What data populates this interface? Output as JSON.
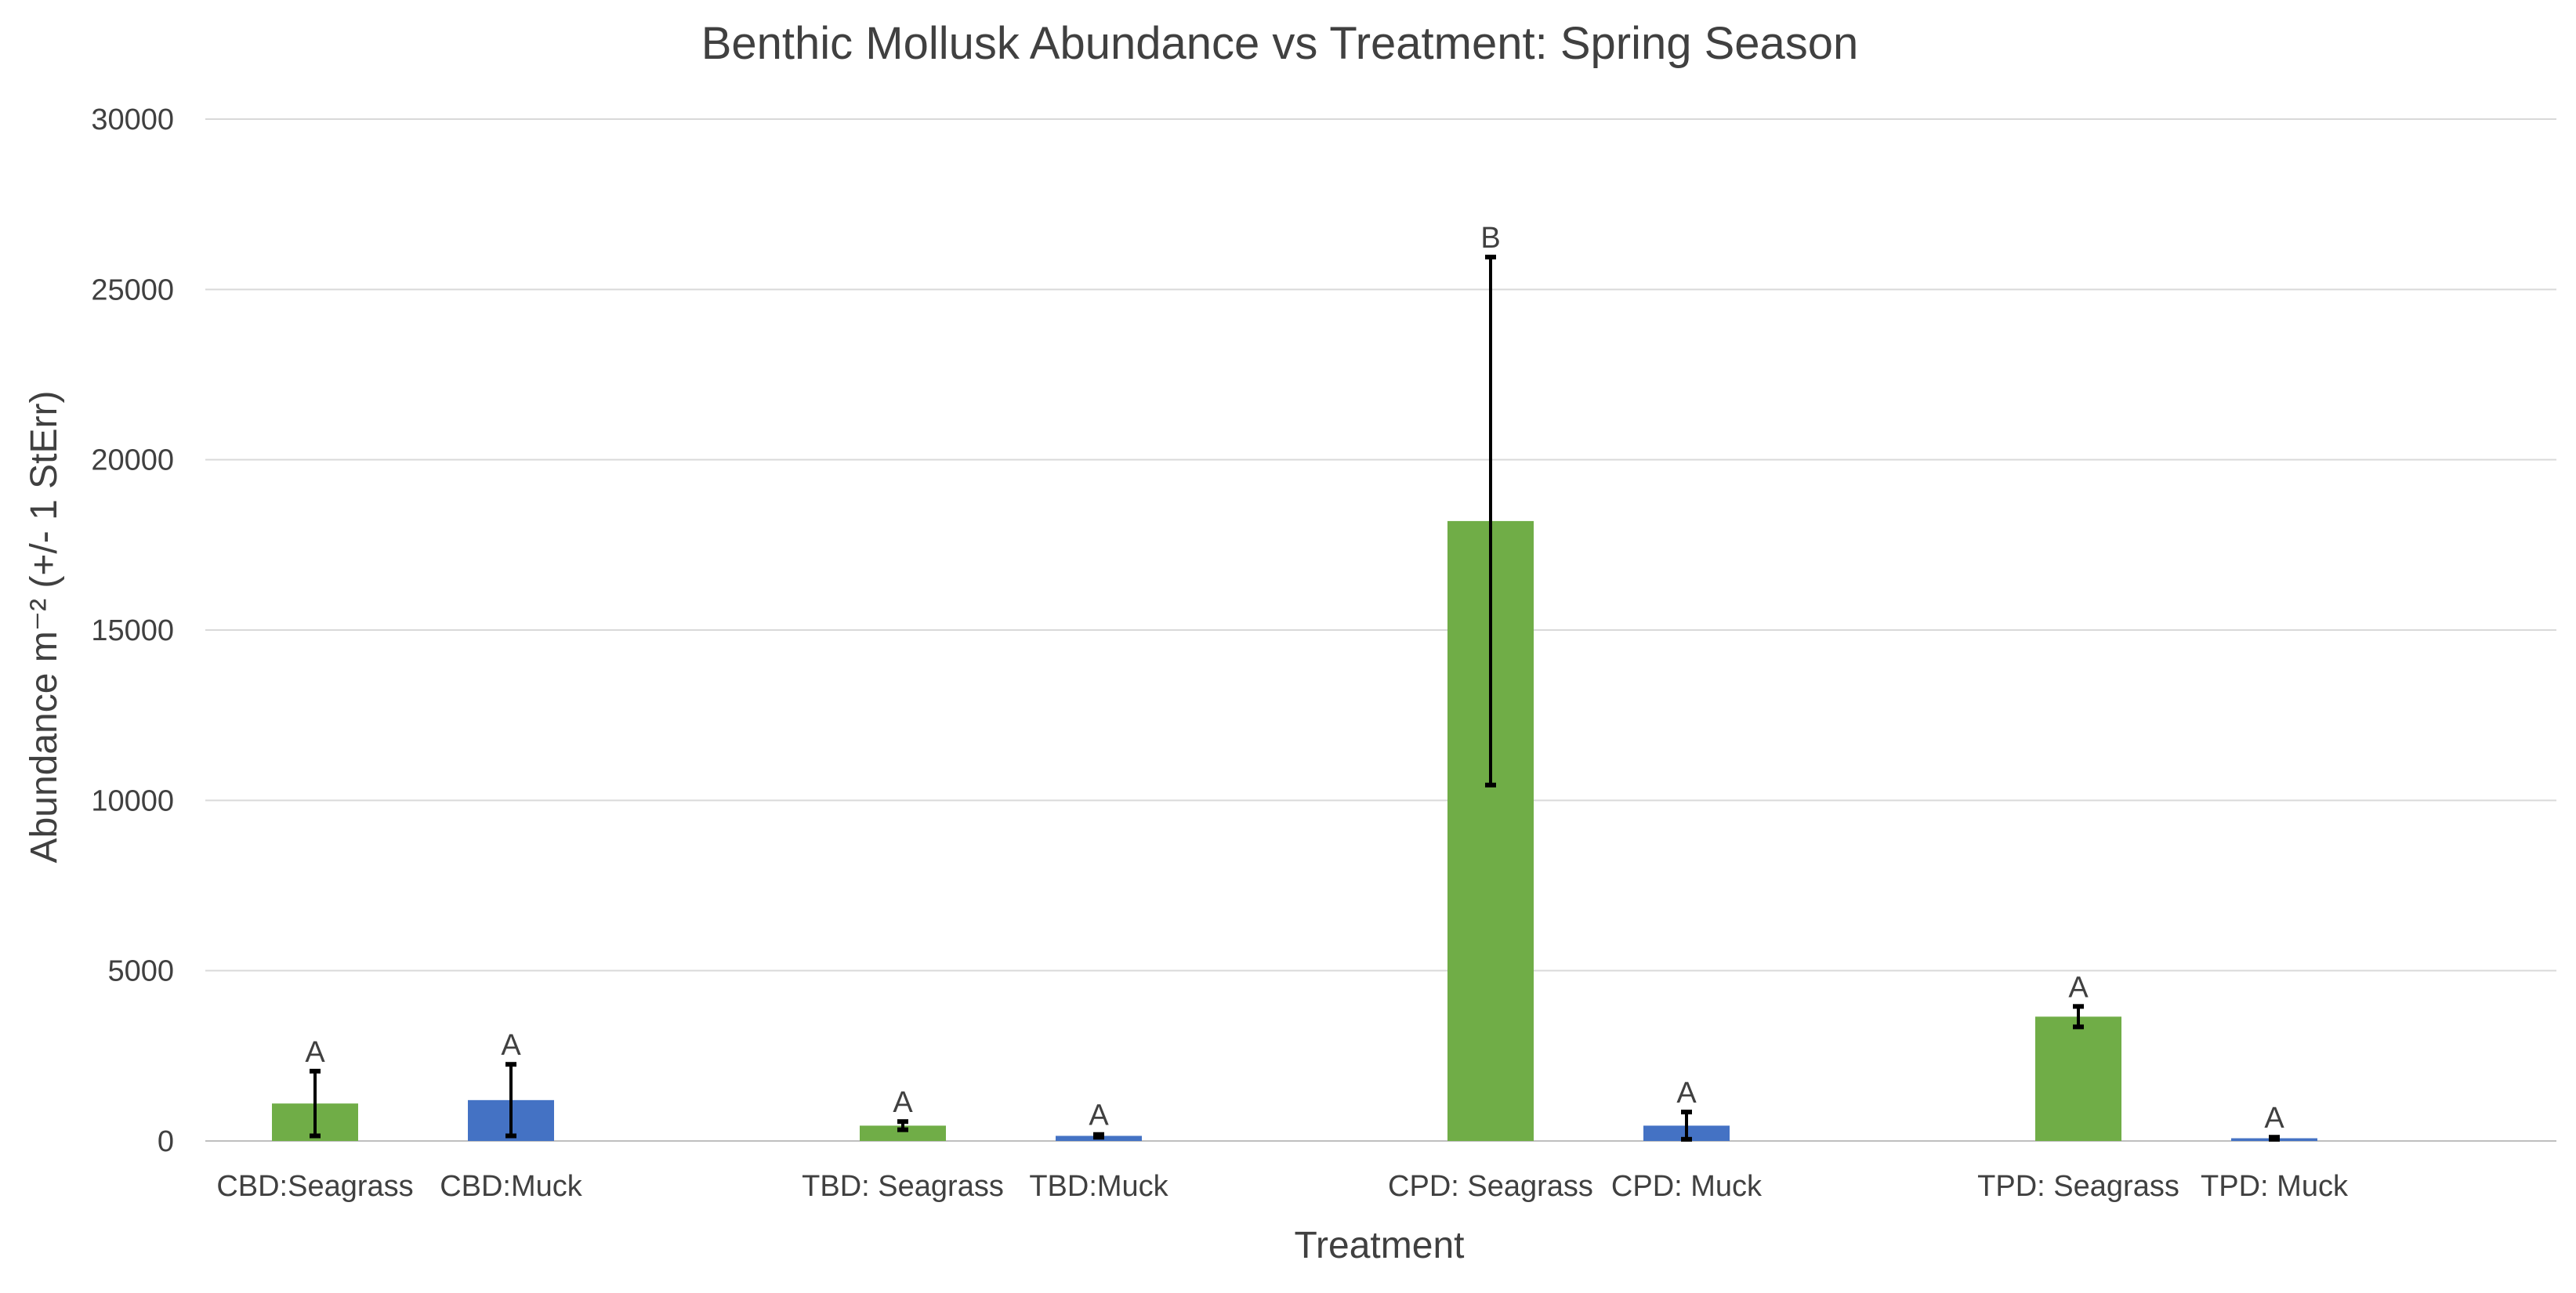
{
  "chart_data": {
    "type": "bar",
    "title": "Benthic Mollusk Abundance vs Treatment: Spring Season",
    "xlabel": "Treatment",
    "ylabel": "Abundance m⁻² (+/- 1 StErr)",
    "ylim": [
      0,
      30000
    ],
    "yticks": [
      0,
      5000,
      10000,
      15000,
      20000,
      25000,
      30000
    ],
    "grid": true,
    "legend": "none",
    "colors": {
      "seagrass": "#70ad47",
      "muck": "#4472c4"
    },
    "groups": [
      {
        "bars": [
          {
            "label": "CBD:Seagrass",
            "value": 1100,
            "err": 950,
            "sig": "A",
            "habitat": "seagrass"
          },
          {
            "label": "CBD:Muck",
            "value": 1200,
            "err": 1050,
            "sig": "A",
            "habitat": "muck"
          }
        ]
      },
      {
        "bars": [
          {
            "label": "TBD: Seagrass",
            "value": 450,
            "err": 120,
            "sig": "A",
            "habitat": "seagrass"
          },
          {
            "label": "TBD:Muck",
            "value": 150,
            "err": 40,
            "sig": "A",
            "habitat": "muck"
          }
        ]
      },
      {
        "bars": [
          {
            "label": "CPD: Seagrass",
            "value": 18200,
            "err": 7750,
            "sig": "B",
            "habitat": "seagrass"
          },
          {
            "label": "CPD: Muck",
            "value": 450,
            "err": 400,
            "sig": "A",
            "habitat": "muck"
          }
        ]
      },
      {
        "bars": [
          {
            "label": "TPD: Seagrass",
            "value": 3650,
            "err": 300,
            "sig": "A",
            "habitat": "seagrass"
          },
          {
            "label": "TPD: Muck",
            "value": 80,
            "err": 30,
            "sig": "A",
            "habitat": "muck"
          }
        ]
      }
    ]
  }
}
